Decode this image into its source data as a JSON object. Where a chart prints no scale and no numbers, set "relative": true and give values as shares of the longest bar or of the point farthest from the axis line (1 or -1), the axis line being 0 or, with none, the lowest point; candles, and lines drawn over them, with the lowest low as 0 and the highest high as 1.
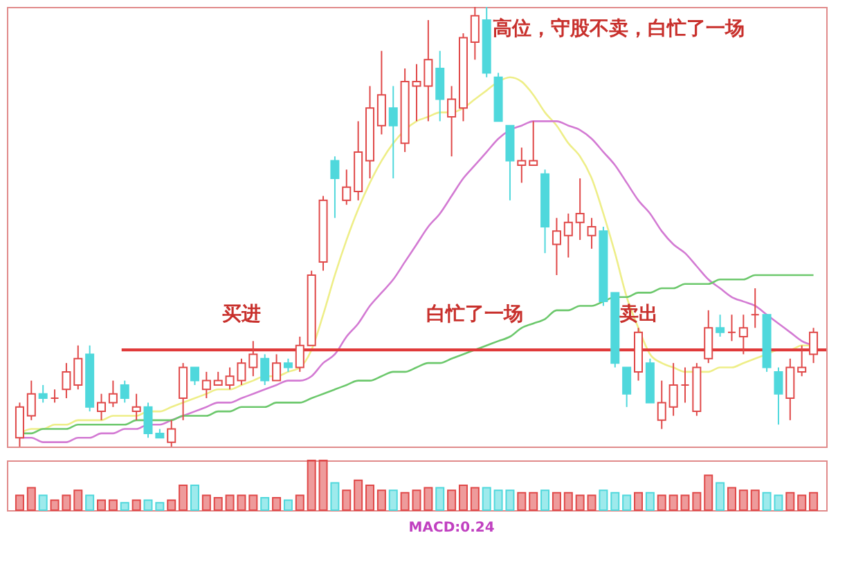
{
  "chart_data": [
    {
      "type": "candlestick",
      "relative": true,
      "categories": [
        null,
        null,
        null,
        null,
        null,
        null,
        null,
        null,
        null,
        null,
        null,
        null,
        null,
        null,
        null,
        null,
        null,
        null,
        null,
        null,
        null,
        null,
        null,
        null,
        null,
        null,
        null,
        null,
        null,
        null,
        null,
        null,
        null,
        null,
        null,
        null,
        null,
        null,
        null,
        null,
        null,
        null,
        null,
        null,
        null,
        null,
        null,
        null,
        null,
        null,
        null,
        null,
        null,
        null,
        null,
        null,
        null,
        null,
        null,
        null,
        null,
        null,
        null,
        null,
        null,
        null,
        null,
        null,
        null
      ],
      "ohlc": [
        [
          0.02,
          0.1,
          0.0,
          0.09
        ],
        [
          0.07,
          0.15,
          0.06,
          0.12
        ],
        [
          0.12,
          0.14,
          0.1,
          0.11
        ],
        [
          0.11,
          0.13,
          0.1,
          0.11
        ],
        [
          0.13,
          0.19,
          0.11,
          0.17
        ],
        [
          0.14,
          0.23,
          0.13,
          0.2
        ],
        [
          0.21,
          0.23,
          0.08,
          0.09
        ],
        [
          0.08,
          0.12,
          0.06,
          0.1
        ],
        [
          0.1,
          0.15,
          0.09,
          0.12
        ],
        [
          0.14,
          0.15,
          0.1,
          0.11
        ],
        [
          0.08,
          0.12,
          0.06,
          0.09
        ],
        [
          0.09,
          0.1,
          0.02,
          0.03
        ],
        [
          0.03,
          0.04,
          0.02,
          0.02
        ],
        [
          0.01,
          0.06,
          0.0,
          0.04
        ],
        [
          0.11,
          0.19,
          0.06,
          0.18
        ],
        [
          0.18,
          0.18,
          0.14,
          0.15
        ],
        [
          0.13,
          0.17,
          0.11,
          0.15
        ],
        [
          0.14,
          0.17,
          0.14,
          0.15
        ],
        [
          0.14,
          0.18,
          0.13,
          0.16
        ],
        [
          0.15,
          0.2,
          0.14,
          0.19
        ],
        [
          0.18,
          0.24,
          0.16,
          0.21
        ],
        [
          0.2,
          0.21,
          0.14,
          0.15
        ],
        [
          0.15,
          0.21,
          0.15,
          0.19
        ],
        [
          0.19,
          0.2,
          0.17,
          0.18
        ],
        [
          0.18,
          0.25,
          0.17,
          0.23
        ],
        [
          0.23,
          0.4,
          0.23,
          0.39
        ],
        [
          0.42,
          0.57,
          0.4,
          0.56
        ],
        [
          0.65,
          0.66,
          0.52,
          0.61
        ],
        [
          0.56,
          0.63,
          0.55,
          0.59
        ],
        [
          0.58,
          0.74,
          0.56,
          0.67
        ],
        [
          0.65,
          0.82,
          0.61,
          0.77
        ],
        [
          0.73,
          0.9,
          0.71,
          0.8
        ],
        [
          0.77,
          0.82,
          0.61,
          0.73
        ],
        [
          0.69,
          0.86,
          0.67,
          0.83
        ],
        [
          0.82,
          0.87,
          0.74,
          0.83
        ],
        [
          0.82,
          0.97,
          0.74,
          0.88
        ],
        [
          0.86,
          0.9,
          0.74,
          0.79
        ],
        [
          0.75,
          0.82,
          0.66,
          0.79
        ],
        [
          0.77,
          0.94,
          0.74,
          0.93
        ],
        [
          0.92,
          1.0,
          0.88,
          0.98
        ],
        [
          0.97,
          1.0,
          0.84,
          0.85
        ],
        [
          0.84,
          0.85,
          0.74,
          0.74
        ],
        [
          0.73,
          0.73,
          0.56,
          0.65
        ],
        [
          0.64,
          0.68,
          0.6,
          0.65
        ],
        [
          0.64,
          0.74,
          0.64,
          0.65
        ],
        [
          0.62,
          0.63,
          0.44,
          0.5
        ],
        [
          0.46,
          0.52,
          0.39,
          0.49
        ],
        [
          0.48,
          0.53,
          0.43,
          0.51
        ],
        [
          0.51,
          0.61,
          0.47,
          0.53
        ],
        [
          0.48,
          0.52,
          0.45,
          0.5
        ],
        [
          0.49,
          0.5,
          0.32,
          0.33
        ],
        [
          0.35,
          0.35,
          0.18,
          0.19
        ],
        [
          0.18,
          0.18,
          0.09,
          0.12
        ],
        [
          0.17,
          0.27,
          0.15,
          0.26
        ],
        [
          0.19,
          0.2,
          0.1,
          0.1
        ],
        [
          0.06,
          0.15,
          0.04,
          0.1
        ],
        [
          0.09,
          0.19,
          0.07,
          0.14
        ],
        [
          0.14,
          0.18,
          0.1,
          0.14
        ],
        [
          0.08,
          0.19,
          0.07,
          0.18
        ],
        [
          0.2,
          0.31,
          0.19,
          0.27
        ],
        [
          0.27,
          0.3,
          0.25,
          0.26
        ],
        [
          0.26,
          0.3,
          0.24,
          0.26
        ],
        [
          0.25,
          0.3,
          0.21,
          0.27
        ],
        [
          0.3,
          0.36,
          0.27,
          0.3
        ],
        [
          0.3,
          0.3,
          0.17,
          0.18
        ],
        [
          0.17,
          0.18,
          0.05,
          0.12
        ],
        [
          0.11,
          0.2,
          0.06,
          0.18
        ],
        [
          0.17,
          0.23,
          0.16,
          0.18
        ],
        [
          0.21,
          0.27,
          0.19,
          0.26
        ]
      ],
      "colors": [
        "#e04848",
        "#e04848",
        "#4fd8dc",
        "#e04848",
        "#e04848",
        "#e04848",
        "#4fd8dc",
        "#e04848",
        "#e04848",
        "#4fd8dc",
        "#e04848",
        "#4fd8dc",
        "#4fd8dc",
        "#e04848",
        "#e04848",
        "#4fd8dc",
        "#e04848",
        "#e04848",
        "#e04848",
        "#e04848",
        "#e04848",
        "#4fd8dc",
        "#e04848",
        "#4fd8dc",
        "#e04848",
        "#e04848",
        "#e04848",
        "#4fd8dc",
        "#e04848",
        "#e04848",
        "#e04848",
        "#e04848",
        "#4fd8dc",
        "#e04848",
        "#e04848",
        "#e04848",
        "#4fd8dc",
        "#e04848",
        "#e04848",
        "#e04848",
        "#4fd8dc",
        "#4fd8dc",
        "#4fd8dc",
        "#e04848",
        "#e04848",
        "#4fd8dc",
        "#e04848",
        "#e04848",
        "#e04848",
        "#e04848",
        "#4fd8dc",
        "#4fd8dc",
        "#4fd8dc",
        "#e04848",
        "#4fd8dc",
        "#e04848",
        "#e04848",
        "#e04848",
        "#e04848",
        "#e04848",
        "#4fd8dc",
        "#e04848",
        "#e04848",
        "#e04848",
        "#4fd8dc",
        "#4fd8dc",
        "#e04848",
        "#e04848",
        "#e04848"
      ],
      "series": [
        {
          "type": "line",
          "color": "#eeee88",
          "values": [
            0.03,
            0.04,
            0.04,
            0.05,
            0.05,
            0.06,
            0.06,
            0.06,
            0.07,
            0.07,
            0.07,
            0.08,
            0.08,
            0.09,
            0.1,
            0.11,
            0.12,
            0.13,
            0.13,
            0.14,
            0.15,
            0.16,
            0.16,
            0.17,
            0.18,
            0.22,
            0.3,
            0.39,
            0.47,
            0.54,
            0.6,
            0.65,
            0.69,
            0.72,
            0.74,
            0.75,
            0.76,
            0.76,
            0.77,
            0.79,
            0.81,
            0.83,
            0.84,
            0.83,
            0.8,
            0.76,
            0.73,
            0.69,
            0.66,
            0.61,
            0.53,
            0.44,
            0.34,
            0.27,
            0.21,
            0.19,
            0.18,
            0.17,
            0.17,
            0.17,
            0.18,
            0.18,
            0.19,
            0.2,
            0.21,
            0.22,
            0.22,
            0.23,
            0.23
          ]
        },
        {
          "type": "line",
          "color": "#d37ad3",
          "values": [
            0.02,
            0.02,
            0.01,
            0.01,
            0.01,
            0.02,
            0.02,
            0.03,
            0.03,
            0.04,
            0.04,
            0.05,
            0.05,
            0.06,
            0.07,
            0.08,
            0.09,
            0.1,
            0.1,
            0.11,
            0.12,
            0.13,
            0.14,
            0.15,
            0.15,
            0.16,
            0.19,
            0.21,
            0.25,
            0.28,
            0.32,
            0.35,
            0.38,
            0.42,
            0.46,
            0.5,
            0.53,
            0.57,
            0.61,
            0.64,
            0.67,
            0.7,
            0.72,
            0.73,
            0.74,
            0.74,
            0.74,
            0.73,
            0.72,
            0.7,
            0.67,
            0.64,
            0.6,
            0.56,
            0.53,
            0.49,
            0.46,
            0.44,
            0.41,
            0.38,
            0.36,
            0.34,
            0.33,
            0.32,
            0.3,
            0.28,
            0.26,
            0.24,
            0.23
          ]
        },
        {
          "type": "line",
          "color": "#6cc86c",
          "values": [
            0.03,
            0.03,
            0.04,
            0.04,
            0.04,
            0.05,
            0.05,
            0.05,
            0.05,
            0.05,
            0.06,
            0.06,
            0.06,
            0.06,
            0.07,
            0.07,
            0.07,
            0.08,
            0.08,
            0.09,
            0.09,
            0.09,
            0.1,
            0.1,
            0.1,
            0.11,
            0.12,
            0.13,
            0.14,
            0.15,
            0.15,
            0.16,
            0.17,
            0.17,
            0.18,
            0.19,
            0.19,
            0.2,
            0.21,
            0.22,
            0.23,
            0.24,
            0.25,
            0.27,
            0.28,
            0.29,
            0.31,
            0.31,
            0.32,
            0.32,
            0.33,
            0.34,
            0.34,
            0.35,
            0.35,
            0.36,
            0.36,
            0.37,
            0.37,
            0.37,
            0.38,
            0.38,
            0.38,
            0.39,
            0.39,
            0.39,
            0.39,
            0.39,
            0.39
          ]
        }
      ],
      "ref_lines": [
        {
          "axis": "y",
          "value": 0.22,
          "color": "#e03a3a"
        }
      ],
      "annotations": [
        "买进",
        "白忙了一场",
        "卖出",
        "高位，守股不卖，白忙了一场"
      ]
    },
    {
      "type": "bar",
      "relative": true,
      "categories": [
        null,
        null,
        null,
        null,
        null,
        null,
        null,
        null,
        null,
        null,
        null,
        null,
        null,
        null,
        null,
        null,
        null,
        null,
        null,
        null,
        null,
        null,
        null,
        null,
        null,
        null,
        null,
        null,
        null,
        null,
        null,
        null,
        null,
        null,
        null,
        null,
        null,
        null,
        null,
        null,
        null,
        null,
        null,
        null,
        null,
        null,
        null,
        null,
        null,
        null,
        null,
        null,
        null,
        null,
        null,
        null,
        null,
        null,
        null,
        null,
        null,
        null,
        null,
        null,
        null,
        null,
        null,
        null,
        null
      ],
      "values": [
        0.3,
        0.45,
        0.3,
        0.2,
        0.3,
        0.4,
        0.3,
        0.2,
        0.2,
        0.15,
        0.2,
        0.2,
        0.15,
        0.2,
        0.5,
        0.5,
        0.3,
        0.25,
        0.3,
        0.3,
        0.3,
        0.25,
        0.25,
        0.2,
        0.3,
        1.0,
        1.0,
        0.55,
        0.4,
        0.6,
        0.5,
        0.4,
        0.4,
        0.35,
        0.4,
        0.45,
        0.45,
        0.4,
        0.5,
        0.45,
        0.45,
        0.4,
        0.4,
        0.35,
        0.35,
        0.4,
        0.35,
        0.35,
        0.3,
        0.3,
        0.4,
        0.35,
        0.3,
        0.35,
        0.35,
        0.3,
        0.3,
        0.3,
        0.35,
        0.7,
        0.55,
        0.45,
        0.4,
        0.4,
        0.35,
        0.3,
        0.35,
        0.3,
        0.35
      ],
      "colors": [
        "#e04848",
        "#e04848",
        "#4fd8dc",
        "#e04848",
        "#e04848",
        "#e04848",
        "#4fd8dc",
        "#e04848",
        "#e04848",
        "#4fd8dc",
        "#e04848",
        "#4fd8dc",
        "#4fd8dc",
        "#e04848",
        "#e04848",
        "#4fd8dc",
        "#e04848",
        "#e04848",
        "#e04848",
        "#e04848",
        "#e04848",
        "#4fd8dc",
        "#e04848",
        "#4fd8dc",
        "#e04848",
        "#e04848",
        "#e04848",
        "#4fd8dc",
        "#e04848",
        "#e04848",
        "#e04848",
        "#e04848",
        "#4fd8dc",
        "#e04848",
        "#e04848",
        "#e04848",
        "#4fd8dc",
        "#e04848",
        "#e04848",
        "#e04848",
        "#4fd8dc",
        "#4fd8dc",
        "#4fd8dc",
        "#e04848",
        "#e04848",
        "#4fd8dc",
        "#e04848",
        "#e04848",
        "#e04848",
        "#e04848",
        "#4fd8dc",
        "#4fd8dc",
        "#4fd8dc",
        "#e04848",
        "#4fd8dc",
        "#e04848",
        "#e04848",
        "#e04848",
        "#e04848",
        "#e04848",
        "#4fd8dc",
        "#e04848",
        "#e04848",
        "#e04848",
        "#4fd8dc",
        "#4fd8dc",
        "#e04848",
        "#e04848",
        "#e04848"
      ],
      "annotations": [
        "MACD:0.24"
      ]
    }
  ]
}
